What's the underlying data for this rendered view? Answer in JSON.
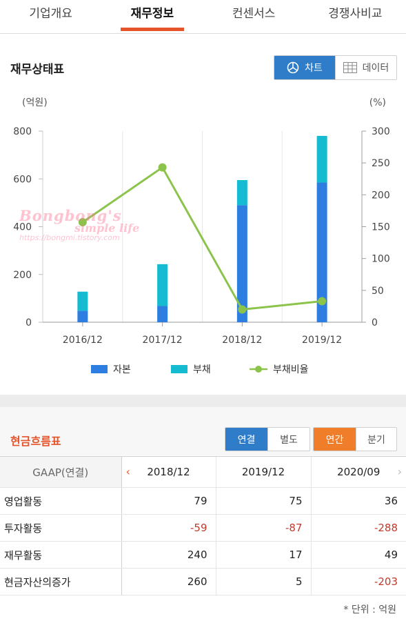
{
  "tabs": [
    "기업개요",
    "재무정보",
    "컨센서스",
    "경쟁사비교"
  ],
  "active_tab": 1,
  "balance_sheet": {
    "title": "재무상태표",
    "view_toggle": {
      "chart_label": "차트",
      "data_label": "데이터",
      "selected": "차트"
    }
  },
  "chart_data": {
    "type": "bar",
    "stacked": true,
    "categories": [
      "2016/12",
      "2017/12",
      "2018/12",
      "2019/12"
    ],
    "series": [
      {
        "name": "자본",
        "type": "bar",
        "axis": "left",
        "color": "#2e7de0",
        "values": [
          48,
          68,
          490,
          585
        ]
      },
      {
        "name": "부채",
        "type": "bar",
        "axis": "left",
        "color": "#15bcd1",
        "values": [
          80,
          175,
          105,
          195
        ]
      },
      {
        "name": "부채비율",
        "type": "line",
        "axis": "right",
        "color": "#8cc34b",
        "values": [
          157,
          243,
          20,
          33
        ]
      }
    ],
    "y_left": {
      "unit": "(억원)",
      "ticks": [
        0,
        200,
        400,
        600,
        800
      ],
      "range": [
        0,
        800
      ]
    },
    "y_right": {
      "unit": "(%)",
      "ticks": [
        0,
        50,
        100,
        150,
        200,
        250,
        300
      ],
      "range": [
        0,
        300
      ]
    },
    "grid": "vertical",
    "legend_position": "bottom"
  },
  "cash_flow": {
    "title": "현금흐름표",
    "consolidation_toggle": {
      "options": [
        "연결",
        "별도"
      ],
      "selected": "연결"
    },
    "period_toggle": {
      "options": [
        "연간",
        "분기"
      ],
      "selected": "연간"
    },
    "header_label": "GAAP(연결)",
    "columns": [
      "2018/12",
      "2019/12",
      "2020/09"
    ],
    "rows": [
      {
        "label": "영업활동",
        "values": [
          "79",
          "75",
          "36"
        ]
      },
      {
        "label": "투자활동",
        "values": [
          "-59",
          "-87",
          "-288"
        ]
      },
      {
        "label": "재무활동",
        "values": [
          "240",
          "17",
          "49"
        ]
      },
      {
        "label": "현금자산의증가",
        "values": [
          "260",
          "5",
          "-203"
        ]
      }
    ],
    "unit_note": "* 단위 : 억원"
  },
  "watermark": {
    "line1": "Bongbong's",
    "line2": "simple life",
    "line3": "https://bongmi.tistory.com"
  }
}
